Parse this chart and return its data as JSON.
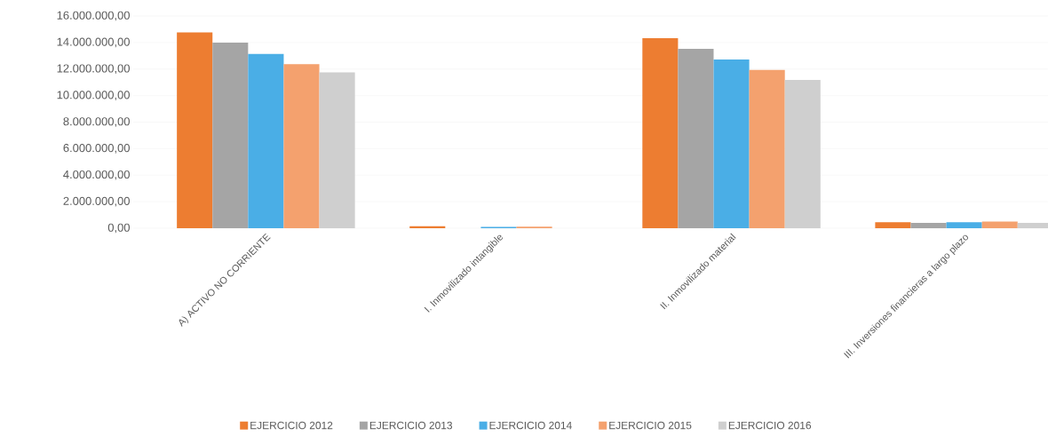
{
  "chart_data": {
    "type": "bar",
    "categories": [
      "A) ACTIVO NO CORRIENTE",
      "I. Inmovilizado intangible",
      "II. Inmovilizado material",
      "III. Inversiones financieras a largo plazo"
    ],
    "series": [
      {
        "name": "EJERCICIO 2012",
        "color": "#ed7d31",
        "values": [
          14760000,
          150000,
          14330000,
          450000
        ]
      },
      {
        "name": "EJERCICIO 2013",
        "color": "#a5a5a5",
        "values": [
          13990000,
          null,
          13520000,
          400000
        ]
      },
      {
        "name": "EJERCICIO 2014",
        "color": "#4aaee6",
        "values": [
          13130000,
          100000,
          12720000,
          450000
        ]
      },
      {
        "name": "EJERCICIO 2015",
        "color": "#f4a16e",
        "values": [
          12360000,
          120000,
          11930000,
          500000
        ]
      },
      {
        "name": "EJERCICIO 2016",
        "color": "#cfcfcf",
        "values": [
          11740000,
          null,
          11180000,
          400000
        ]
      }
    ],
    "ylim": [
      0,
      16000000
    ],
    "yticks": [
      {
        "value": 0,
        "label": "0,00"
      },
      {
        "value": 2000000,
        "label": "2.000.000,00"
      },
      {
        "value": 4000000,
        "label": "4.000.000,00"
      },
      {
        "value": 6000000,
        "label": "6.000.000,00"
      },
      {
        "value": 8000000,
        "label": "8.000.000,00"
      },
      {
        "value": 10000000,
        "label": "10.000.000,00"
      },
      {
        "value": 12000000,
        "label": "12.000.000,00"
      },
      {
        "value": 14000000,
        "label": "14.000.000,00"
      },
      {
        "value": 16000000,
        "label": "16.000.000,00"
      }
    ],
    "grid": "y",
    "legend": "bottom"
  }
}
